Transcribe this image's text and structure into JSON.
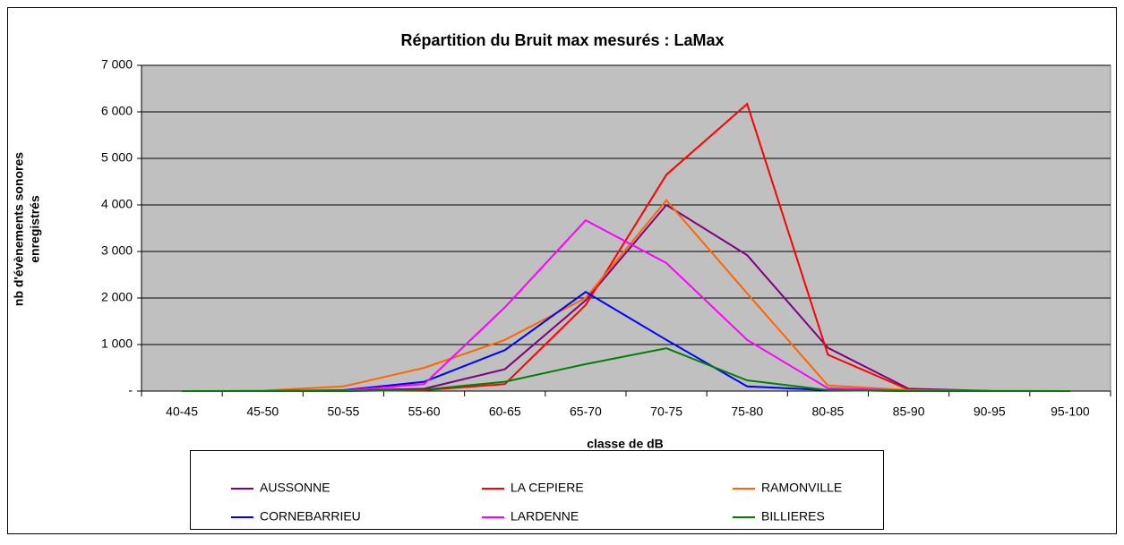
{
  "chart_data": {
    "type": "line",
    "title": "Répartition du Bruit max mesurés : LaMax",
    "x_label": "classe de dB",
    "y_label": [
      "nb d'évènements sonores",
      "enregistrés"
    ],
    "categories": [
      "40-45",
      "45-50",
      "50-55",
      "55-60",
      "60-65",
      "65-70",
      "70-75",
      "75-80",
      "80-85",
      "85-90",
      "90-95",
      "95-100"
    ],
    "ylim": [
      0,
      7000
    ],
    "yticks": [
      {
        "value": 0,
        "label": "-"
      },
      {
        "value": 1000,
        "label": "1 000"
      },
      {
        "value": 2000,
        "label": "2 000"
      },
      {
        "value": 3000,
        "label": "3 000"
      },
      {
        "value": 4000,
        "label": "4 000"
      },
      {
        "value": 5000,
        "label": "5 000"
      },
      {
        "value": 6000,
        "label": "6 000"
      },
      {
        "value": 7000,
        "label": "7 000"
      }
    ],
    "grid": true,
    "legend": "bottom",
    "series": [
      {
        "name": "AUSSONNE",
        "color": "#800080",
        "values": [
          0,
          0,
          10,
          50,
          470,
          1950,
          4000,
          2920,
          930,
          50,
          5,
          0
        ]
      },
      {
        "name": "LA CEPIERE",
        "color": "#ff0000",
        "values": [
          0,
          0,
          0,
          20,
          150,
          1850,
          4650,
          6170,
          780,
          30,
          0,
          0
        ]
      },
      {
        "name": "RAMONVILLE",
        "color": "#ff6600",
        "values": [
          0,
          10,
          100,
          500,
          1100,
          2000,
          4100,
          2100,
          120,
          20,
          0,
          0
        ]
      },
      {
        "name": "CORNEBARRIEU",
        "color": "#0000ff",
        "values": [
          0,
          0,
          20,
          200,
          880,
          2130,
          1100,
          100,
          20,
          0,
          0,
          0
        ]
      },
      {
        "name": "LARDENNE",
        "color": "#ff00ff",
        "values": [
          0,
          0,
          10,
          150,
          1800,
          3670,
          2750,
          1100,
          60,
          10,
          0,
          0
        ]
      },
      {
        "name": "BILLIERES",
        "color": "#008000",
        "values": [
          0,
          0,
          0,
          30,
          200,
          580,
          920,
          230,
          20,
          0,
          0,
          0
        ]
      }
    ]
  }
}
